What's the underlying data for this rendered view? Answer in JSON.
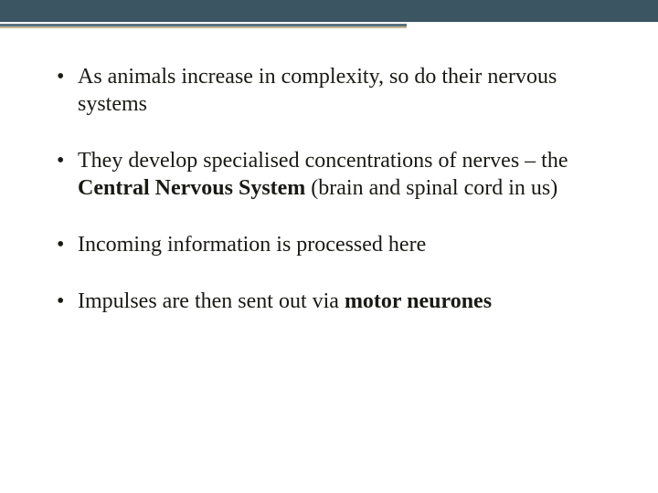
{
  "slide": {
    "background_color": "#ffffff",
    "top_bar_color": "#3b5563",
    "accent_line_color": "#5a7380",
    "accent_line2_color": "#c9b896",
    "text_color": "#1a1a15",
    "font_family": "Georgia, serif",
    "font_size": 24,
    "bullets": [
      {
        "segments": [
          {
            "text": "As animals increase in complexity, so do their nervous systems",
            "bold": false
          }
        ]
      },
      {
        "segments": [
          {
            "text": "They develop specialised concentrations of nerves – the ",
            "bold": false
          },
          {
            "text": "Central Nervous System",
            "bold": true
          },
          {
            "text": " (brain and spinal cord in us)",
            "bold": false
          }
        ]
      },
      {
        "segments": [
          {
            "text": "Incoming information is processed here",
            "bold": false
          }
        ]
      },
      {
        "segments": [
          {
            "text": "Impulses are then sent out via ",
            "bold": false
          },
          {
            "text": "motor neurones",
            "bold": true
          }
        ]
      }
    ]
  }
}
